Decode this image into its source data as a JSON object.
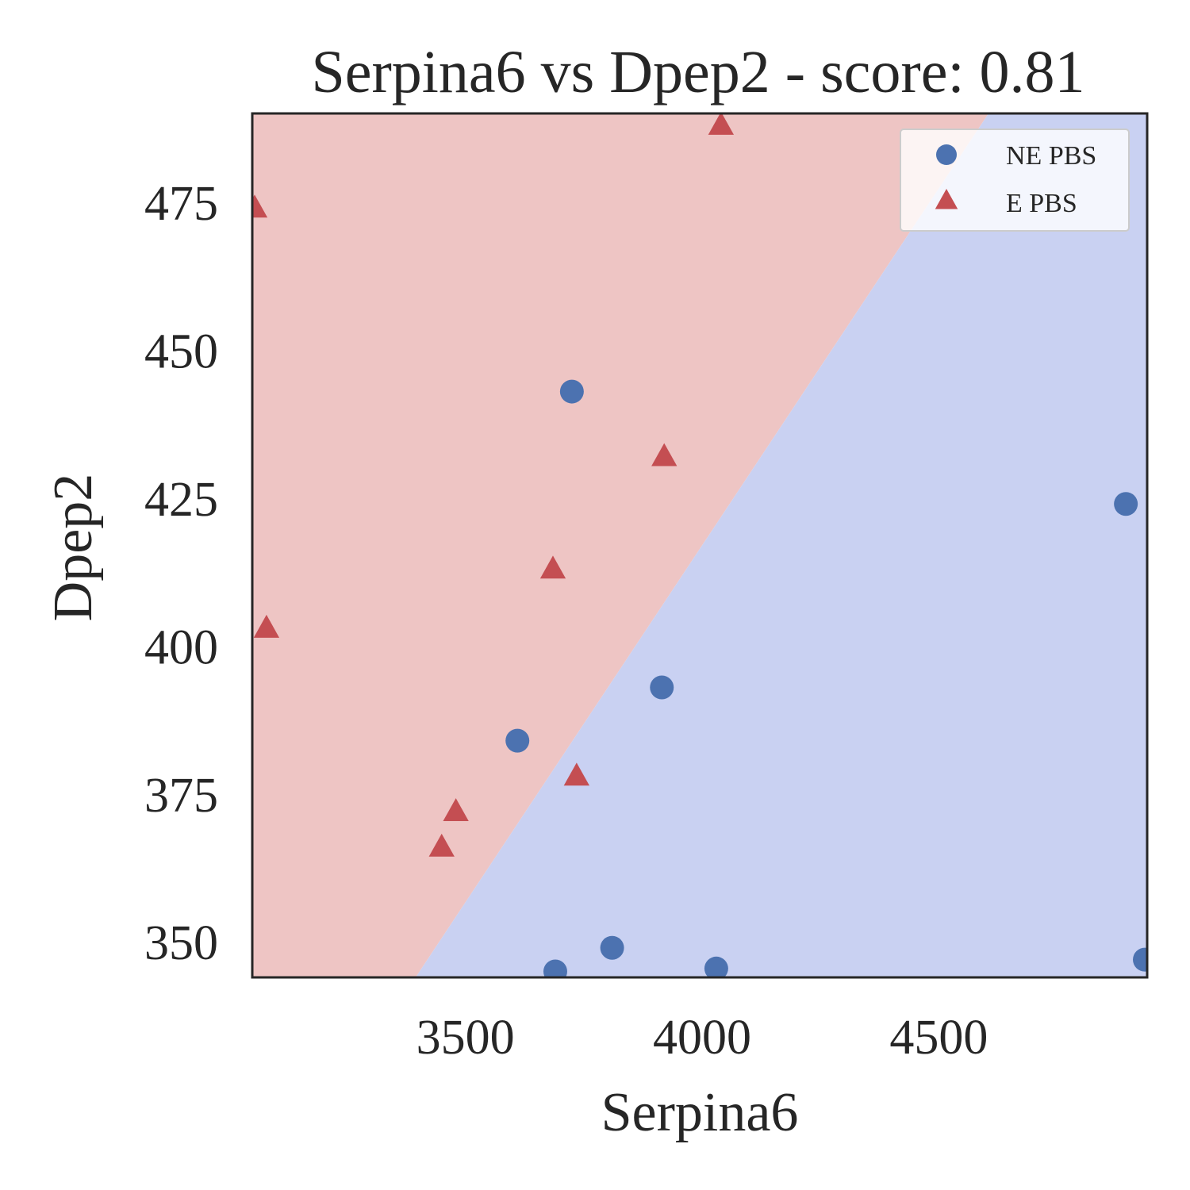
{
  "chart_data": {
    "type": "scatter",
    "title": "Serpina6 vs Dpep2 - score: 0.81",
    "xlabel": "Serpina6",
    "ylabel": "Dpep2",
    "xlim": [
      3050,
      4940
    ],
    "ylim": [
      344,
      490
    ],
    "x_ticks": [
      3500,
      4000,
      4500
    ],
    "y_ticks": [
      350,
      375,
      400,
      425,
      450,
      475
    ],
    "grid": false,
    "legend_placement": "top-right",
    "decision_regions": {
      "boundary_line": [
        [
          3395,
          344
        ],
        [
          4605,
          490
        ]
      ],
      "upper_left_class": "E PBS",
      "lower_right_class": "NE PBS",
      "colors": {
        "E PBS": "#eec5c4",
        "NE PBS": "#c9d1f2"
      }
    },
    "series": [
      {
        "name": "NE PBS",
        "marker": "circle",
        "color": "#4c72b0",
        "points": [
          [
            3725,
            443
          ],
          [
            3610,
            384
          ],
          [
            3915,
            393
          ],
          [
            3690,
            345
          ],
          [
            3810,
            349
          ],
          [
            4030,
            345.5
          ],
          [
            4895,
            424
          ],
          [
            4935,
            347
          ]
        ]
      },
      {
        "name": "E PBS",
        "marker": "triangle",
        "color": "#c44e52",
        "points": [
          [
            3055,
            474
          ],
          [
            3080,
            403
          ],
          [
            4040,
            488
          ],
          [
            3920,
            432
          ],
          [
            3685,
            413
          ],
          [
            3735,
            378
          ],
          [
            3480,
            372
          ],
          [
            3450,
            366
          ]
        ]
      }
    ]
  }
}
